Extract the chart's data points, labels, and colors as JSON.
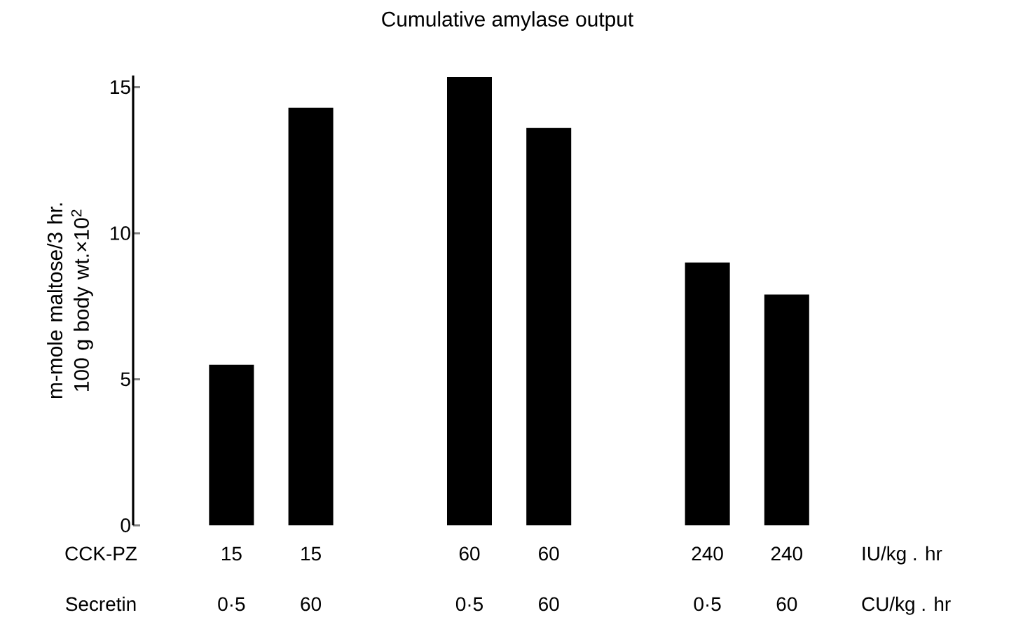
{
  "chart_data": {
    "type": "bar",
    "title": "Cumulative amylase output",
    "ylabel": "m-mole maltose/3 hr. 100 g body wt.×10$^{2}$",
    "categories": [
      "15",
      "15",
      null,
      "60",
      "60",
      null,
      "240",
      "240"
    ],
    "values": [
      5.5,
      14.3,
      null,
      15.35,
      13.6,
      null,
      9.0,
      7.9
    ],
    "color": "#000000",
    "ylim": [
      0,
      15.4
    ],
    "yticks": [
      0,
      5,
      10,
      15
    ],
    "annotations": [
      "CCK-PZ",
      "IU/kg . hr",
      "Secretin",
      "CU/kg . hr",
      "0·5",
      "60",
      "0·5",
      "60",
      "0·5",
      "60"
    ]
  }
}
